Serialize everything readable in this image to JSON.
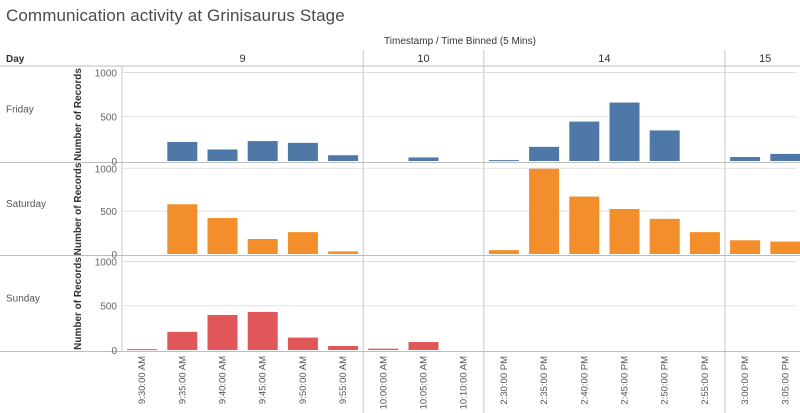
{
  "title": "Communication activity at Grinisaurus Stage",
  "x_header": "Timestamp / Time Binned (5 Mins)",
  "day_column_header": "Day",
  "y_axis_label": "Number of Records",
  "colors": {
    "Friday": "#4e79a7",
    "Saturday": "#f28e2b",
    "Sunday": "#e15759",
    "grid": "#d9d9d9",
    "divider": "#c8c8c8"
  },
  "chart_data": {
    "type": "bar",
    "title": "Communication activity at Grinisaurus Stage",
    "xlabel": "Timestamp / Time Binned (5 Mins)",
    "ylabel": "Number of Records",
    "ylim": [
      0,
      1050
    ],
    "yticks": [
      0,
      500,
      1000
    ],
    "hour_groups": [
      {
        "label": "9",
        "categories": [
          "9:30:00 AM",
          "9:35:00 AM",
          "9:40:00 AM",
          "9:45:00 AM",
          "9:50:00 AM",
          "9:55:00 AM"
        ]
      },
      {
        "label": "10",
        "categories": [
          "10:00:00 AM",
          "10:05:00 AM",
          "10:10:00 AM"
        ]
      },
      {
        "label": "14",
        "categories": [
          "2:30:00 PM",
          "2:35:00 PM",
          "2:40:00 PM",
          "2:45:00 PM",
          "2:50:00 PM",
          "2:55:00 PM"
        ]
      },
      {
        "label": "15",
        "categories": [
          "3:00:00 PM",
          "3:05:00 PM"
        ]
      }
    ],
    "categories": [
      "9:30:00 AM",
      "9:35:00 AM",
      "9:40:00 AM",
      "9:45:00 AM",
      "9:50:00 AM",
      "9:55:00 AM",
      "10:00:00 AM",
      "10:05:00 AM",
      "10:10:00 AM",
      "2:30:00 PM",
      "2:35:00 PM",
      "2:40:00 PM",
      "2:45:00 PM",
      "2:50:00 PM",
      "2:55:00 PM",
      "3:00:00 PM",
      "3:05:00 PM"
    ],
    "series": [
      {
        "name": "Friday",
        "values": [
          null,
          215,
          130,
          225,
          205,
          65,
          null,
          40,
          null,
          10,
          160,
          445,
          660,
          345,
          null,
          45,
          80
        ]
      },
      {
        "name": "Saturday",
        "values": [
          null,
          580,
          420,
          175,
          255,
          30,
          null,
          null,
          null,
          45,
          995,
          670,
          525,
          410,
          255,
          160,
          145
        ]
      },
      {
        "name": "Sunday",
        "values": [
          10,
          205,
          395,
          430,
          140,
          45,
          15,
          90,
          null,
          null,
          null,
          null,
          null,
          null,
          null,
          null,
          null
        ]
      }
    ]
  }
}
